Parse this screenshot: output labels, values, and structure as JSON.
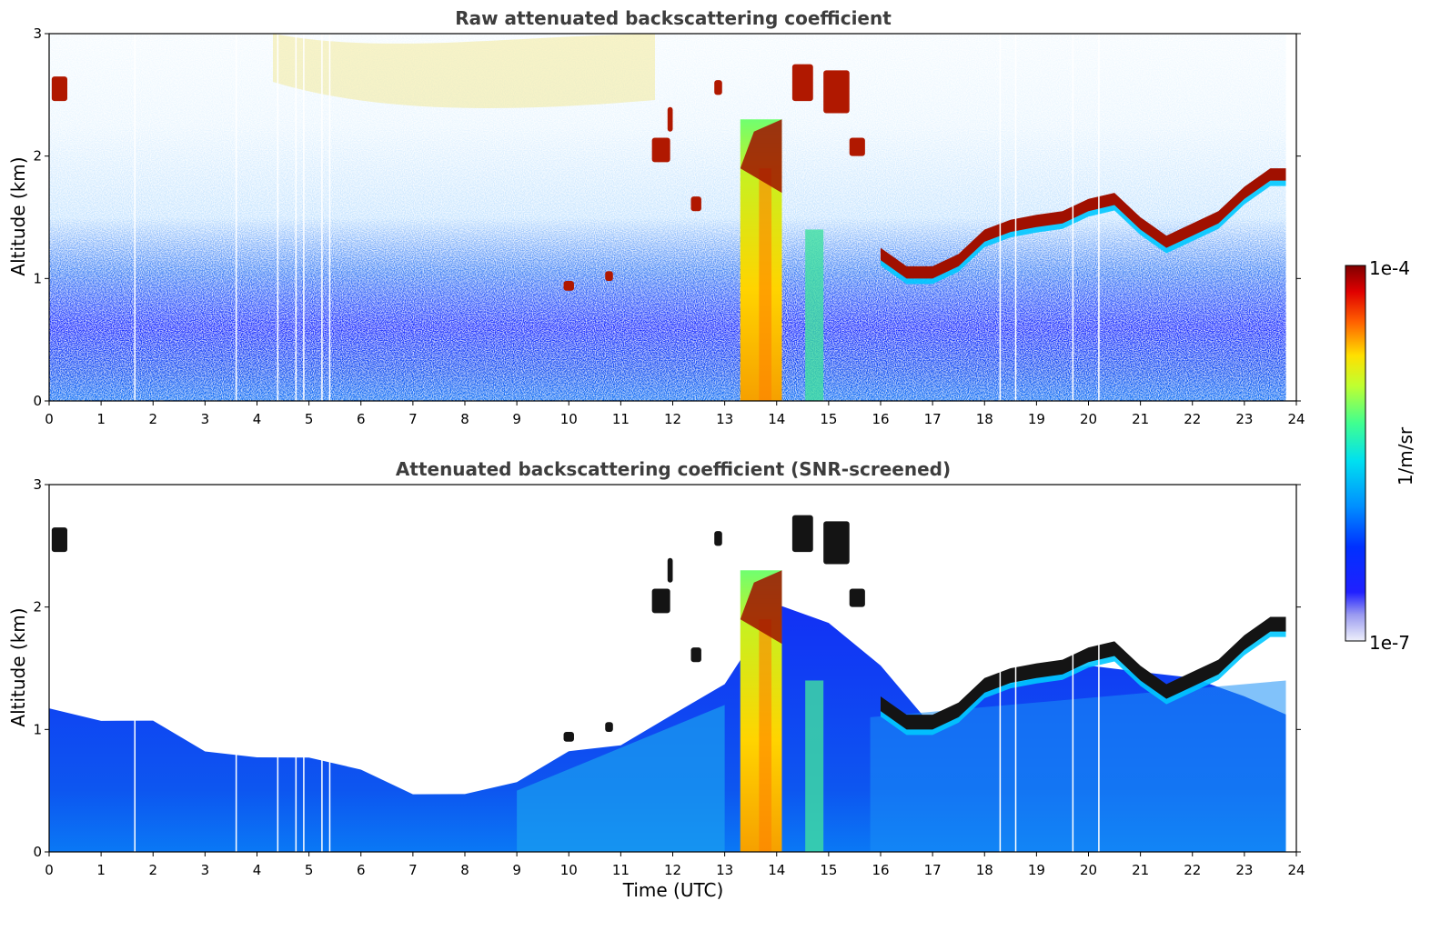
{
  "chart_data": [
    {
      "type": "heatmap",
      "title": "Raw attenuated backscattering coefficient",
      "xlabel": "",
      "ylabel": "Altitude (km)",
      "xlim": [
        0,
        24
      ],
      "ylim": [
        0,
        3
      ],
      "x_ticks": [
        "0",
        "1",
        "2",
        "3",
        "4",
        "5",
        "6",
        "7",
        "8",
        "9",
        "10",
        "11",
        "12",
        "13",
        "14",
        "15",
        "16",
        "17",
        "18",
        "19",
        "20",
        "21",
        "22",
        "23",
        "24"
      ],
      "y_ticks": [
        "0",
        "1",
        "2",
        "3"
      ],
      "x_data_range": [
        0,
        23.8
      ],
      "features": {
        "cloud_base_layer": {
          "time": [
            16.0,
            16.5,
            17.0,
            17.5,
            18.0,
            18.5,
            19.0,
            19.5,
            20.0,
            20.5,
            21.0,
            21.5,
            22.0,
            22.5,
            23.0,
            23.5,
            23.8
          ],
          "altitude_km": [
            1.15,
            1.0,
            1.0,
            1.1,
            1.3,
            1.38,
            1.42,
            1.45,
            1.55,
            1.6,
            1.4,
            1.25,
            1.35,
            1.45,
            1.65,
            1.8,
            1.8
          ]
        },
        "strong_aerosol_column": {
          "time_start": 13.3,
          "time_end": 14.1,
          "altitude_km": [
            0,
            2.3
          ]
        },
        "clear_gaps_time": [
          1.65,
          3.6,
          4.4,
          4.75,
          4.9,
          5.25,
          5.4,
          18.3,
          18.6,
          19.7,
          20.2
        ]
      },
      "colorscale": {
        "label": "1/m/sr",
        "min": "1e-7",
        "max": "1e-4",
        "scale": "log",
        "colormap": "jet"
      }
    },
    {
      "type": "heatmap",
      "title": "Attenuated backscattering coefficient (SNR-screened)",
      "xlabel": "Time (UTC)",
      "ylabel": "Altitude (km)",
      "xlim": [
        0,
        24
      ],
      "ylim": [
        0,
        3
      ],
      "x_ticks": [
        "0",
        "1",
        "2",
        "3",
        "4",
        "5",
        "6",
        "7",
        "8",
        "9",
        "10",
        "11",
        "12",
        "13",
        "14",
        "15",
        "16",
        "17",
        "18",
        "19",
        "20",
        "21",
        "22",
        "23",
        "24"
      ],
      "y_ticks": [
        "0",
        "1",
        "2",
        "3"
      ],
      "x_data_range": [
        0,
        23.8
      ],
      "features": {
        "boundary_layer_top": {
          "time": [
            0,
            1,
            2,
            3,
            4,
            5,
            6,
            7,
            8,
            9,
            10,
            11,
            12,
            13,
            14,
            15,
            16,
            17,
            18,
            19,
            20,
            21,
            22,
            23,
            23.8
          ],
          "altitude_km": [
            1.15,
            1.1,
            1.05,
            0.85,
            0.75,
            0.8,
            0.65,
            0.5,
            0.45,
            0.6,
            0.8,
            0.9,
            1.1,
            1.4,
            2.0,
            1.9,
            1.5,
            1.05,
            1.3,
            1.45,
            1.5,
            1.5,
            1.4,
            1.3,
            1.1
          ]
        }
      },
      "colorscale": {
        "label": "1/m/sr",
        "min": "1e-7",
        "max": "1e-4",
        "scale": "log",
        "colormap": "jet"
      }
    }
  ]
}
